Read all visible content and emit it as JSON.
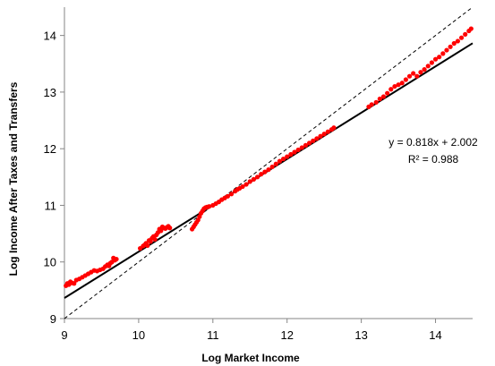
{
  "chart_data": {
    "type": "scatter",
    "title": "",
    "xlabel": "Log Market Income",
    "ylabel": "Log Income After Taxes  and Transfers",
    "xlim": [
      9,
      14.5
    ],
    "ylim": [
      9,
      14.5
    ],
    "x_ticks": [
      "9",
      "10",
      "11",
      "12",
      "13",
      "14"
    ],
    "y_ticks": [
      "9",
      "10",
      "11",
      "12",
      "13",
      "14"
    ],
    "grid": false,
    "legend": "none",
    "point_color": "#ff0000",
    "trendline": {
      "slope": 0.818,
      "intercept": 2.002,
      "color": "#000000"
    },
    "identity_line": {
      "slope": 1,
      "intercept": 0,
      "style": "dashed",
      "color": "#000000"
    },
    "annotations": {
      "equation": "y = 0.818x + 2.002",
      "r_squared": "R² = 0.988"
    },
    "points": [
      [
        9.02,
        9.58
      ],
      [
        9.04,
        9.62
      ],
      [
        9.06,
        9.6
      ],
      [
        9.08,
        9.65
      ],
      [
        9.1,
        9.63
      ],
      [
        9.13,
        9.62
      ],
      [
        9.16,
        9.68
      ],
      [
        9.2,
        9.7
      ],
      [
        9.24,
        9.73
      ],
      [
        9.28,
        9.76
      ],
      [
        9.32,
        9.79
      ],
      [
        9.36,
        9.82
      ],
      [
        9.4,
        9.85
      ],
      [
        9.44,
        9.84
      ],
      [
        9.48,
        9.86
      ],
      [
        9.52,
        9.88
      ],
      [
        9.55,
        9.92
      ],
      [
        9.58,
        9.95
      ],
      [
        9.6,
        9.93
      ],
      [
        9.62,
        9.98
      ],
      [
        9.64,
        10.0
      ],
      [
        9.66,
        10.07
      ],
      [
        9.68,
        10.03
      ],
      [
        9.7,
        10.05
      ],
      [
        10.02,
        10.24
      ],
      [
        10.06,
        10.28
      ],
      [
        10.08,
        10.3
      ],
      [
        10.1,
        10.33
      ],
      [
        10.12,
        10.29
      ],
      [
        10.14,
        10.38
      ],
      [
        10.16,
        10.36
      ],
      [
        10.18,
        10.42
      ],
      [
        10.2,
        10.45
      ],
      [
        10.22,
        10.4
      ],
      [
        10.24,
        10.48
      ],
      [
        10.26,
        10.52
      ],
      [
        10.28,
        10.58
      ],
      [
        10.3,
        10.55
      ],
      [
        10.32,
        10.62
      ],
      [
        10.34,
        10.6
      ],
      [
        10.36,
        10.59
      ],
      [
        10.38,
        10.61
      ],
      [
        10.4,
        10.63
      ],
      [
        10.42,
        10.6
      ],
      [
        10.72,
        10.58
      ],
      [
        10.74,
        10.62
      ],
      [
        10.76,
        10.66
      ],
      [
        10.78,
        10.7
      ],
      [
        10.8,
        10.74
      ],
      [
        10.82,
        10.8
      ],
      [
        10.84,
        10.86
      ],
      [
        10.86,
        10.9
      ],
      [
        10.88,
        10.94
      ],
      [
        10.9,
        10.96
      ],
      [
        10.92,
        10.97
      ],
      [
        10.95,
        10.98
      ],
      [
        11.0,
        11.0
      ],
      [
        11.04,
        11.03
      ],
      [
        11.08,
        11.06
      ],
      [
        11.12,
        11.1
      ],
      [
        11.16,
        11.13
      ],
      [
        11.2,
        11.16
      ],
      [
        11.25,
        11.2
      ],
      [
        11.3,
        11.25
      ],
      [
        11.33,
        11.28
      ],
      [
        11.36,
        11.3
      ],
      [
        11.4,
        11.33
      ],
      [
        11.45,
        11.37
      ],
      [
        11.5,
        11.42
      ],
      [
        11.55,
        11.46
      ],
      [
        11.6,
        11.5
      ],
      [
        11.65,
        11.55
      ],
      [
        11.7,
        11.59
      ],
      [
        11.75,
        11.63
      ],
      [
        11.8,
        11.68
      ],
      [
        11.85,
        11.73
      ],
      [
        11.9,
        11.78
      ],
      [
        11.95,
        11.82
      ],
      [
        12.0,
        11.86
      ],
      [
        12.05,
        11.9
      ],
      [
        12.1,
        11.94
      ],
      [
        12.15,
        11.98
      ],
      [
        12.2,
        12.02
      ],
      [
        12.25,
        12.06
      ],
      [
        12.3,
        12.1
      ],
      [
        12.35,
        12.14
      ],
      [
        12.4,
        12.18
      ],
      [
        12.45,
        12.22
      ],
      [
        12.5,
        12.26
      ],
      [
        12.55,
        12.3
      ],
      [
        12.6,
        12.34
      ],
      [
        12.63,
        12.37
      ],
      [
        13.1,
        12.74
      ],
      [
        13.14,
        12.78
      ],
      [
        13.2,
        12.82
      ],
      [
        13.25,
        12.88
      ],
      [
        13.3,
        12.92
      ],
      [
        13.35,
        12.98
      ],
      [
        13.4,
        13.05
      ],
      [
        13.45,
        13.1
      ],
      [
        13.5,
        13.13
      ],
      [
        13.55,
        13.16
      ],
      [
        13.6,
        13.22
      ],
      [
        13.65,
        13.28
      ],
      [
        13.7,
        13.33
      ],
      [
        13.75,
        13.28
      ],
      [
        13.8,
        13.35
      ],
      [
        13.85,
        13.4
      ],
      [
        13.9,
        13.46
      ],
      [
        13.95,
        13.52
      ],
      [
        14.0,
        13.58
      ],
      [
        14.05,
        13.62
      ],
      [
        14.1,
        13.68
      ],
      [
        14.15,
        13.74
      ],
      [
        14.2,
        13.8
      ],
      [
        14.25,
        13.86
      ],
      [
        14.3,
        13.9
      ],
      [
        14.35,
        13.96
      ],
      [
        14.4,
        14.02
      ],
      [
        14.45,
        14.08
      ],
      [
        14.48,
        14.12
      ]
    ]
  }
}
